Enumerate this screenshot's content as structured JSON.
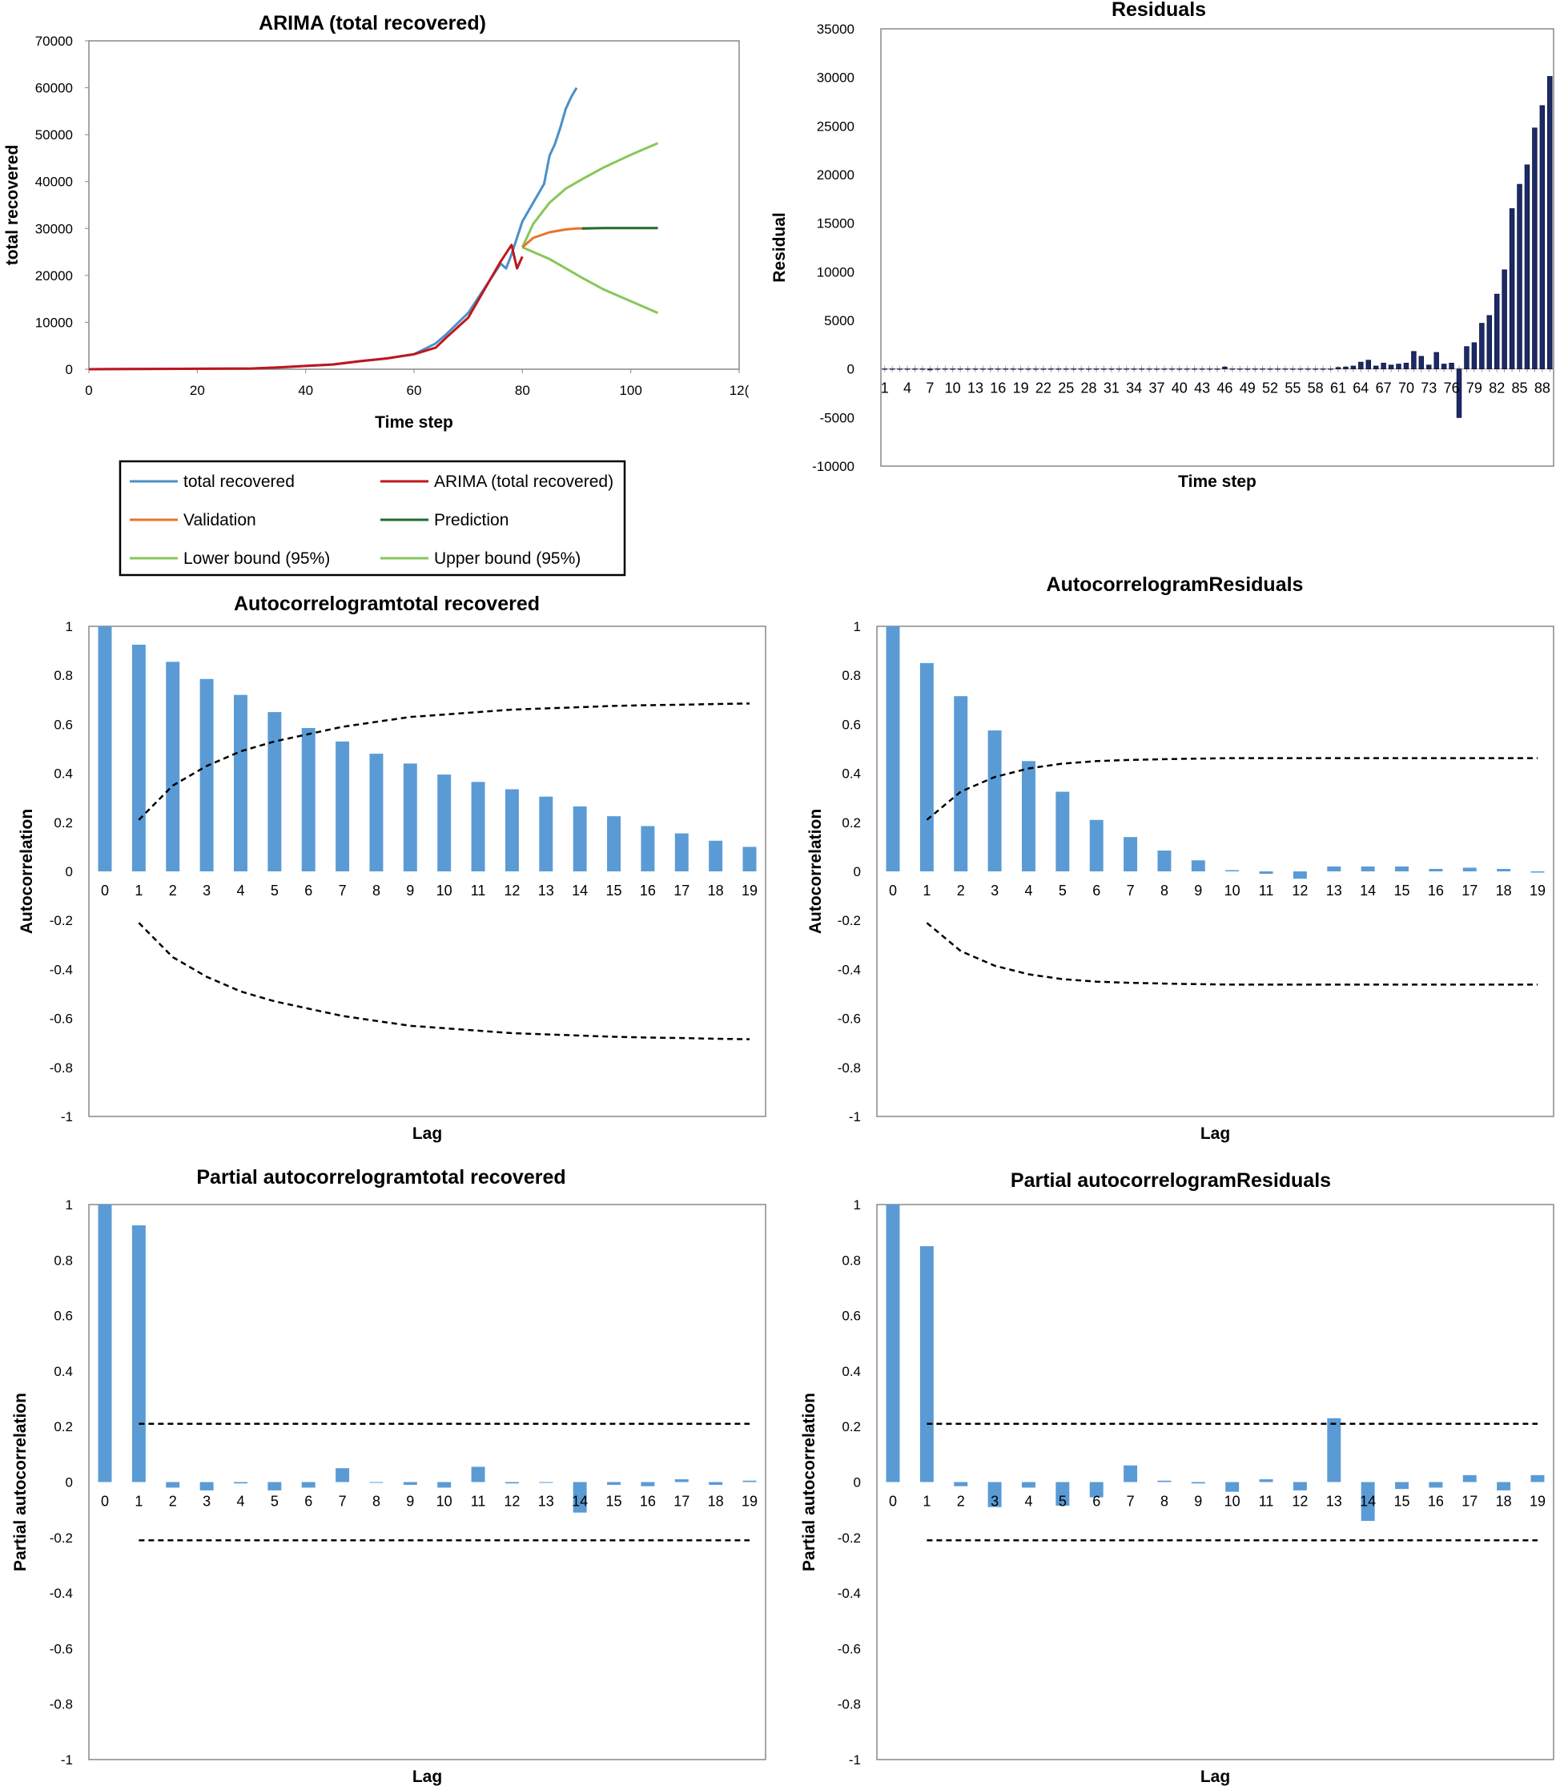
{
  "chart_data": [
    {
      "id": "arima",
      "type": "line",
      "title": "ARIMA (total recovered)",
      "xlabel": "Time step",
      "ylabel": "total recovered",
      "xlim": [
        0,
        120
      ],
      "ylim": [
        0,
        70000
      ],
      "xticks": [
        "0",
        "20",
        "40",
        "60",
        "80",
        "100",
        "12("
      ],
      "yticks": [
        "0",
        "10000",
        "20000",
        "30000",
        "40000",
        "50000",
        "60000",
        "70000"
      ],
      "series": [
        {
          "name": "total recovered",
          "color": "#4a90c8",
          "points": [
            [
              0,
              0
            ],
            [
              30,
              150
            ],
            [
              35,
              400
            ],
            [
              40,
              700
            ],
            [
              45,
              1000
            ],
            [
              50,
              1700
            ],
            [
              55,
              2300
            ],
            [
              60,
              3200
            ],
            [
              64,
              5500
            ],
            [
              66,
              7500
            ],
            [
              70,
              12000
            ],
            [
              74,
              19000
            ],
            [
              76,
              22500
            ],
            [
              77,
              21500
            ],
            [
              78,
              24500
            ],
            [
              80,
              31500
            ],
            [
              84,
              39500
            ],
            [
              85,
              45500
            ],
            [
              86,
              48000
            ],
            [
              87,
              51500
            ],
            [
              88,
              55500
            ],
            [
              89,
              58000
            ],
            [
              90,
              60000
            ]
          ]
        },
        {
          "name": "ARIMA (total recovered)",
          "color": "#c0161b",
          "points": [
            [
              0,
              0
            ],
            [
              30,
              150
            ],
            [
              35,
              400
            ],
            [
              40,
              700
            ],
            [
              45,
              1000
            ],
            [
              50,
              1700
            ],
            [
              55,
              2300
            ],
            [
              60,
              3200
            ],
            [
              64,
              4600
            ],
            [
              66,
              6800
            ],
            [
              70,
              11000
            ],
            [
              74,
              19000
            ],
            [
              76,
              23000
            ],
            [
              78,
              26500
            ],
            [
              79,
              21500
            ],
            [
              80,
              24000
            ]
          ]
        },
        {
          "name": "Validation",
          "color": "#e8742a",
          "points": [
            [
              80,
              26000
            ],
            [
              82,
              28000
            ],
            [
              85,
              29200
            ],
            [
              88,
              29800
            ],
            [
              90,
              30000
            ],
            [
              92,
              30000
            ]
          ]
        },
        {
          "name": "Prediction",
          "color": "#1f6b2e",
          "points": [
            [
              91,
              30000
            ],
            [
              95,
              30100
            ],
            [
              100,
              30100
            ],
            [
              105,
              30100
            ]
          ]
        },
        {
          "name": "Lower bound (95%)",
          "color": "#86c75a",
          "points": [
            [
              80,
              26000
            ],
            [
              82,
              25000
            ],
            [
              85,
              23500
            ],
            [
              88,
              21500
            ],
            [
              91,
              19500
            ],
            [
              95,
              17000
            ],
            [
              100,
              14500
            ],
            [
              105,
              12000
            ]
          ]
        },
        {
          "name": "Upper bound (95%)",
          "color": "#86c75a",
          "points": [
            [
              80,
              26000
            ],
            [
              82,
              31000
            ],
            [
              85,
              35500
            ],
            [
              88,
              38500
            ],
            [
              91,
              40500
            ],
            [
              95,
              43000
            ],
            [
              100,
              45700
            ],
            [
              105,
              48200
            ]
          ]
        }
      ],
      "legend": [
        {
          "label": "total recovered",
          "color": "#4a90c8"
        },
        {
          "label": "ARIMA (total recovered)",
          "color": "#c0161b"
        },
        {
          "label": "Validation",
          "color": "#e8742a"
        },
        {
          "label": "Prediction",
          "color": "#1f6b2e"
        },
        {
          "label": "Lower bound (95%)",
          "color": "#86c75a"
        },
        {
          "label": "Upper bound (95%)",
          "color": "#86c75a"
        }
      ]
    },
    {
      "id": "residuals",
      "type": "bar",
      "title": "Residuals",
      "xlabel": "Time step",
      "ylabel": "Residual",
      "ylim": [
        -10000,
        35000
      ],
      "yticks": [
        "-10000",
        "-5000",
        "0",
        "5000",
        "10000",
        "15000",
        "20000",
        "25000",
        "30000",
        "35000"
      ],
      "xticks": [
        "1",
        "4",
        "7",
        "10",
        "13",
        "16",
        "19",
        "22",
        "25",
        "28",
        "31",
        "34",
        "37",
        "40",
        "43",
        "46",
        "49",
        "52",
        "55",
        "58",
        "61",
        "64",
        "67",
        "70",
        "73",
        "76",
        "79",
        "82",
        "85",
        "88"
      ],
      "color": "#1c2a66",
      "values": [
        0,
        0,
        0,
        0,
        0,
        0,
        -100,
        0,
        0,
        0,
        0,
        0,
        0,
        0,
        0,
        0,
        0,
        0,
        0,
        0,
        0,
        0,
        0,
        0,
        0,
        0,
        0,
        0,
        0,
        0,
        0,
        0,
        0,
        0,
        0,
        0,
        0,
        0,
        0,
        0,
        0,
        0,
        0,
        0,
        0,
        200,
        0,
        0,
        0,
        0,
        0,
        0,
        0,
        0,
        0,
        0,
        0,
        0,
        0,
        0,
        150,
        200,
        300,
        700,
        900,
        300,
        600,
        400,
        500,
        600,
        1800,
        1300,
        400,
        1700,
        500,
        600,
        -5000,
        2300,
        2700,
        4700,
        5500,
        7700,
        10200,
        16500,
        19000,
        21000,
        24800,
        27100,
        30100
      ]
    },
    {
      "id": "acf-total",
      "type": "bar",
      "title": "Autocorrelogramtotal recovered",
      "xlabel": "Lag",
      "ylabel": "Autocorrelation",
      "ylim": [
        -1,
        1
      ],
      "yticks": [
        "-1",
        "-0.8",
        "-0.6",
        "-0.4",
        "-0.2",
        "0",
        "0.2",
        "0.4",
        "0.6",
        "0.8",
        "1"
      ],
      "categories": [
        "0",
        "1",
        "2",
        "3",
        "4",
        "5",
        "6",
        "7",
        "8",
        "9",
        "10",
        "11",
        "12",
        "13",
        "14",
        "15",
        "16",
        "17",
        "18",
        "19"
      ],
      "values": [
        1.0,
        0.925,
        0.855,
        0.785,
        0.72,
        0.65,
        0.585,
        0.53,
        0.48,
        0.44,
        0.395,
        0.365,
        0.335,
        0.305,
        0.265,
        0.225,
        0.185,
        0.155,
        0.125,
        0.1
      ],
      "bound_x": [
        1,
        2,
        3,
        4,
        5,
        6,
        7,
        8,
        9,
        10,
        11,
        12,
        13,
        14,
        15,
        16,
        17,
        18,
        19
      ],
      "bound": [
        0.21,
        0.35,
        0.43,
        0.49,
        0.53,
        0.56,
        0.59,
        0.61,
        0.63,
        0.64,
        0.65,
        0.66,
        0.665,
        0.67,
        0.675,
        0.678,
        0.68,
        0.683,
        0.685
      ],
      "color": "#5b9bd5"
    },
    {
      "id": "acf-resid",
      "type": "bar",
      "title": "AutocorrelogramResiduals",
      "xlabel": "Lag",
      "ylabel": "Autocorrelation",
      "ylim": [
        -1,
        1
      ],
      "yticks": [
        "-1",
        "-0.8",
        "-0.6",
        "-0.4",
        "-0.2",
        "0",
        "0.2",
        "0.4",
        "0.6",
        "0.8",
        "1"
      ],
      "categories": [
        "0",
        "1",
        "2",
        "3",
        "4",
        "5",
        "6",
        "7",
        "8",
        "9",
        "10",
        "11",
        "12",
        "13",
        "14",
        "15",
        "16",
        "17",
        "18",
        "19"
      ],
      "values": [
        1.0,
        0.85,
        0.715,
        0.575,
        0.45,
        0.325,
        0.21,
        0.14,
        0.085,
        0.045,
        0.005,
        -0.01,
        -0.03,
        0.02,
        0.02,
        0.02,
        0.01,
        0.015,
        0.01,
        -0.005
      ],
      "bound_x": [
        1,
        2,
        3,
        4,
        5,
        6,
        7,
        8,
        9,
        10,
        11,
        12,
        13,
        14,
        15,
        16,
        17,
        18,
        19
      ],
      "bound": [
        0.21,
        0.325,
        0.385,
        0.42,
        0.44,
        0.45,
        0.455,
        0.458,
        0.46,
        0.462,
        0.462,
        0.462,
        0.462,
        0.462,
        0.462,
        0.462,
        0.462,
        0.462,
        0.462
      ],
      "color": "#5b9bd5"
    },
    {
      "id": "pacf-total",
      "type": "bar",
      "title": "Partial autocorrelogramtotal recovered",
      "xlabel": "Lag",
      "ylabel": "Partial autocorrelation",
      "ylim": [
        -1,
        1
      ],
      "yticks": [
        "-1",
        "-0.8",
        "-0.6",
        "-0.4",
        "-0.2",
        "0",
        "0.2",
        "0.4",
        "0.6",
        "0.8",
        "1"
      ],
      "categories": [
        "0",
        "1",
        "2",
        "3",
        "4",
        "5",
        "6",
        "7",
        "8",
        "9",
        "10",
        "11",
        "12",
        "13",
        "14",
        "15",
        "16",
        "17",
        "18",
        "19"
      ],
      "values": [
        1.0,
        0.925,
        -0.02,
        -0.03,
        -0.005,
        -0.03,
        -0.02,
        0.05,
        0.0,
        -0.01,
        -0.02,
        0.055,
        -0.005,
        0.0,
        -0.11,
        -0.01,
        -0.015,
        0.01,
        -0.01,
        0.005
      ],
      "bound_x": [
        1,
        19
      ],
      "bound": [
        0.21,
        0.21
      ],
      "color": "#5b9bd5"
    },
    {
      "id": "pacf-resid",
      "type": "bar",
      "title": "Partial autocorrelogramResiduals",
      "xlabel": "Lag",
      "ylabel": "Partial autocorrelation",
      "ylim": [
        -1,
        1
      ],
      "yticks": [
        "-1",
        "-0.8",
        "-0.6",
        "-0.4",
        "-0.2",
        "0",
        "0.2",
        "0.4",
        "0.6",
        "0.8",
        "1"
      ],
      "categories": [
        "0",
        "1",
        "2",
        "3",
        "4",
        "5",
        "6",
        "7",
        "8",
        "9",
        "10",
        "11",
        "12",
        "13",
        "14",
        "15",
        "16",
        "17",
        "18",
        "19"
      ],
      "values": [
        1.0,
        0.85,
        -0.015,
        -0.09,
        -0.02,
        -0.085,
        -0.055,
        0.06,
        0.005,
        -0.005,
        -0.035,
        0.01,
        -0.03,
        0.23,
        -0.14,
        -0.025,
        -0.02,
        0.025,
        -0.03,
        0.025
      ],
      "bound_x": [
        1,
        19
      ],
      "bound": [
        0.21,
        0.21
      ],
      "color": "#5b9bd5"
    }
  ]
}
